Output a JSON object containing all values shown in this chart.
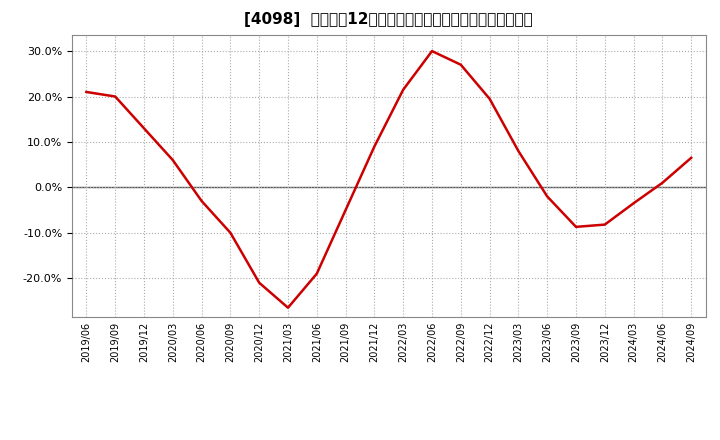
{
  "title": "[4098]  売上高の12か月移動合計の対前年同期増減率の推移",
  "line_color": "#cc0000",
  "background_color": "#ffffff",
  "grid_color": "#aaaaaa",
  "ylim": [
    -0.285,
    0.335
  ],
  "yticks": [
    -0.2,
    -0.1,
    0.0,
    0.1,
    0.2,
    0.3
  ],
  "dates": [
    "2019/06",
    "2019/09",
    "2019/12",
    "2020/03",
    "2020/06",
    "2020/09",
    "2020/12",
    "2021/03",
    "2021/06",
    "2021/09",
    "2021/12",
    "2022/03",
    "2022/06",
    "2022/09",
    "2022/12",
    "2023/03",
    "2023/06",
    "2023/09",
    "2023/12",
    "2024/03",
    "2024/06",
    "2024/09"
  ],
  "values": [
    0.21,
    0.2,
    0.13,
    0.06,
    -0.03,
    -0.1,
    -0.21,
    -0.265,
    -0.19,
    -0.05,
    0.09,
    0.215,
    0.3,
    0.27,
    0.195,
    0.08,
    -0.02,
    -0.087,
    -0.082,
    -0.035,
    0.01,
    0.065
  ]
}
